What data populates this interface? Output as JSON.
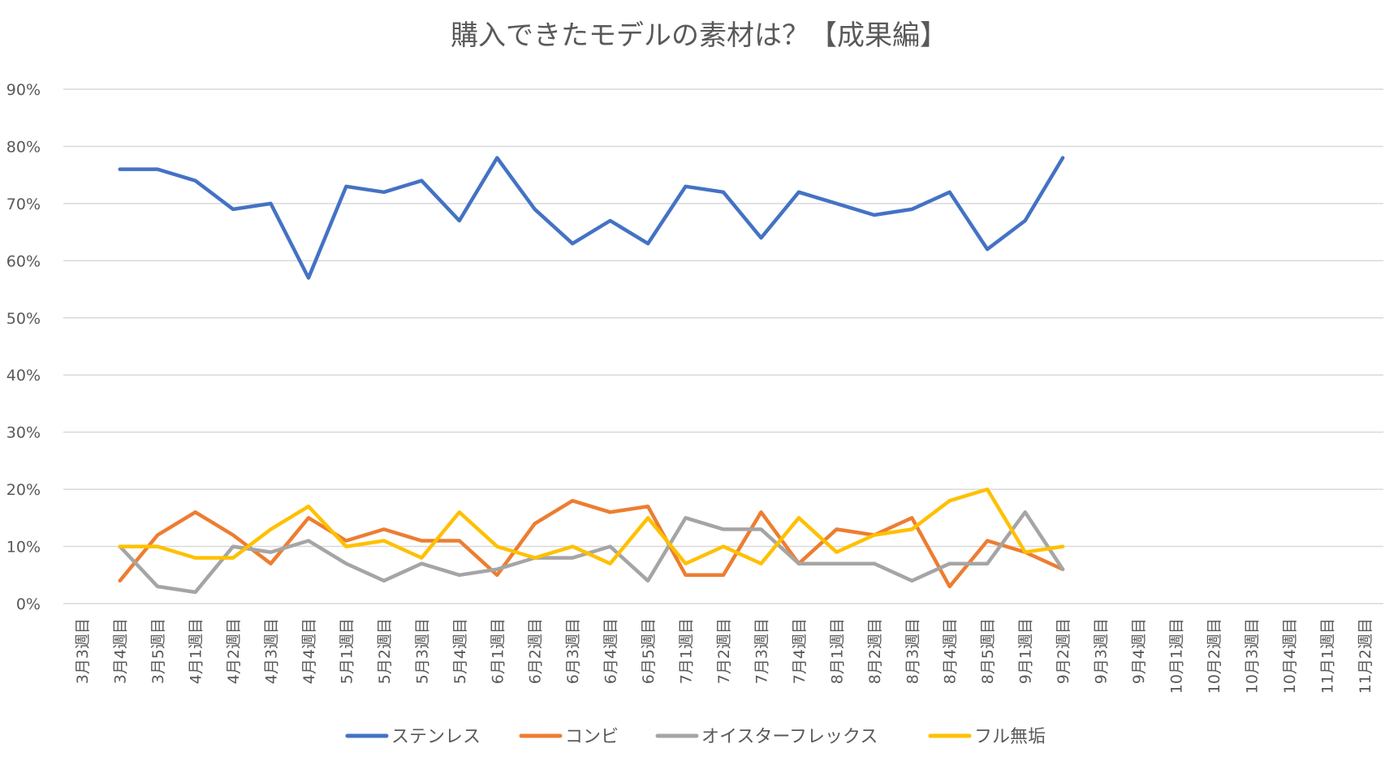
{
  "chart_data": {
    "type": "line",
    "title": "購入できたモデルの素材は？【成果編】",
    "xlabel": "",
    "ylabel": "",
    "ylim": [
      0,
      90
    ],
    "y_unit": "%",
    "y_ticks": [
      "0%",
      "10%",
      "20%",
      "30%",
      "40%",
      "50%",
      "60%",
      "70%",
      "80%",
      "90%"
    ],
    "grid": true,
    "legend_position": "bottom",
    "categories": [
      "3月3週目",
      "3月4週目",
      "3月5週目",
      "4月1週目",
      "4月2週目",
      "4月3週目",
      "4月4週目",
      "5月1週目",
      "5月2週目",
      "5月3週目",
      "5月4週目",
      "6月1週目",
      "6月2週目",
      "6月3週目",
      "6月4週目",
      "6月5週目",
      "7月1週目",
      "7月2週目",
      "7月3週目",
      "7月4週目",
      "8月1週目",
      "8月2週目",
      "8月3週目",
      "8月4週目",
      "8月5週目",
      "9月1週目",
      "9月2週目",
      "9月3週目",
      "9月4週目",
      "10月1週目",
      "10月2週目",
      "10月3週目",
      "10月4週目",
      "11月1週目",
      "11月2週目"
    ],
    "series": [
      {
        "name": "ステンレス",
        "color": "#4472c4",
        "values": [
          null,
          76,
          76,
          74,
          69,
          70,
          57,
          73,
          72,
          74,
          67,
          78,
          69,
          63,
          67,
          63,
          73,
          72,
          64,
          72,
          70,
          68,
          69,
          72,
          62,
          67,
          78,
          null,
          null,
          null,
          null,
          null,
          null,
          null,
          null
        ]
      },
      {
        "name": "コンビ",
        "color": "#ed7d31",
        "values": [
          null,
          4,
          12,
          16,
          12,
          7,
          15,
          11,
          13,
          11,
          11,
          5,
          14,
          18,
          16,
          17,
          5,
          5,
          16,
          7,
          13,
          12,
          15,
          3,
          11,
          9,
          6,
          null,
          null,
          null,
          null,
          null,
          null,
          null,
          null
        ]
      },
      {
        "name": "オイスターフレックス",
        "color": "#a5a5a5",
        "values": [
          null,
          10,
          3,
          2,
          10,
          9,
          11,
          7,
          4,
          7,
          5,
          6,
          8,
          8,
          10,
          4,
          15,
          13,
          13,
          7,
          7,
          7,
          4,
          7,
          7,
          16,
          6,
          null,
          null,
          null,
          null,
          null,
          null,
          null,
          null
        ]
      },
      {
        "name": "フル無垢",
        "color": "#ffc000",
        "values": [
          null,
          10,
          10,
          8,
          8,
          13,
          17,
          10,
          11,
          8,
          16,
          10,
          8,
          10,
          7,
          15,
          7,
          10,
          7,
          15,
          9,
          12,
          13,
          18,
          20,
          9,
          10,
          null,
          null,
          null,
          null,
          null,
          null,
          null,
          null
        ]
      }
    ]
  }
}
